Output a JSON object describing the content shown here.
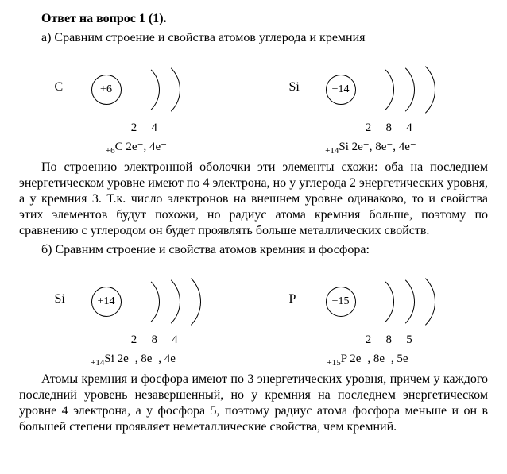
{
  "title": "Ответ на вопрос 1 (1).",
  "partA": {
    "intro": "а) Сравним строение и свойства атомов углерода и кремния",
    "carbon": {
      "symbol": "C",
      "nucleus": "+6",
      "shell_counts": [
        "2",
        "4"
      ],
      "config_sub": "+6",
      "config_sym": "C",
      "config_rest": " 2e⁻, 4e⁻"
    },
    "silicon": {
      "symbol": "Si",
      "nucleus": "+14",
      "shell_counts": [
        "2",
        "8",
        "4"
      ],
      "config_sub": "+14",
      "config_sym": "Si",
      "config_rest": " 2e⁻, 8e⁻, 4e⁻"
    },
    "text": "По строению электронной оболочки эти элементы схожи: оба на последнем энергетическом уровне имеют по 4 электрона, но у углерода 2 энергетических уровня, а у кремния 3. Т.к. число электронов на внешнем уровне одинаково, то и свойства этих элементов будут похожи, но радиус атома кремния больше, поэтому по сравнению с углеродом он будет проявлять больше металлических свойств."
  },
  "partB": {
    "intro": "б) Сравним строение и свойства атомов кремния и фосфора:",
    "silicon": {
      "symbol": "Si",
      "nucleus": "+14",
      "shell_counts": [
        "2",
        "8",
        "4"
      ],
      "config_sub": "+14",
      "config_sym": "Si",
      "config_rest": " 2e⁻, 8e⁻, 4e⁻"
    },
    "phosphorus": {
      "symbol": "P",
      "nucleus": "+15",
      "shell_counts": [
        "2",
        "8",
        "5"
      ],
      "config_sub": "+15",
      "config_sym": "P",
      "config_rest": " 2e⁻, 8e⁻, 5e⁻"
    },
    "text": "Атомы кремния и фосфора имеют по 3 энергетических уровня, причем у каждого последний уровень незавершенный, но у кремния на последнем энергетическом уровне 4 электрона, а у фосфора 5, поэтому радиус атома фосфора меньше и он в большей степени проявляет неметаллические свойства, чем кремний."
  }
}
